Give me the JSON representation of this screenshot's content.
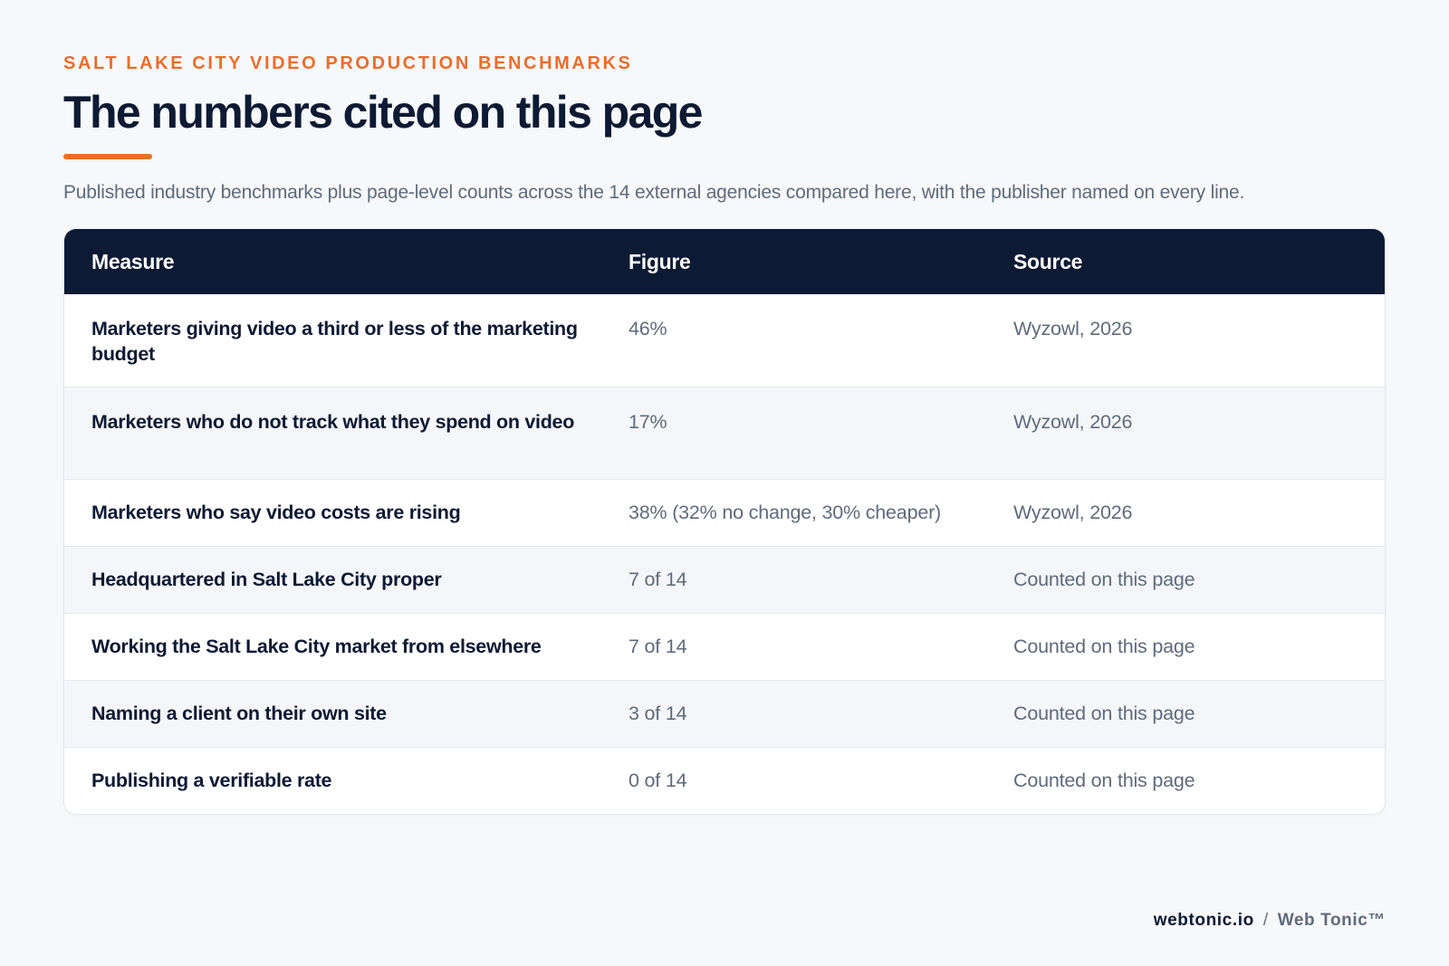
{
  "header": {
    "eyebrow": "SALT LAKE CITY VIDEO PRODUCTION BENCHMARKS",
    "title": "The numbers cited on this page",
    "subtitle": "Published industry benchmarks plus page-level counts across the 14 external agencies compared here, with the publisher named on every line."
  },
  "table": {
    "columns": {
      "measure": "Measure",
      "figure": "Figure",
      "source": "Source"
    },
    "rows": [
      {
        "measure": "Marketers giving video a third or less of the marketing budget",
        "figure": "46%",
        "source": "Wyzowl, 2026"
      },
      {
        "measure": "Marketers who do not track what they spend on video",
        "figure": "17%",
        "source": "Wyzowl, 2026"
      },
      {
        "measure": "Marketers who say video costs are rising",
        "figure": "38% (32% no change, 30% cheaper)",
        "source": "Wyzowl, 2026"
      },
      {
        "measure": "Headquartered in Salt Lake City proper",
        "figure": "7 of 14",
        "source": "Counted on this page"
      },
      {
        "measure": "Working the Salt Lake City market from elsewhere",
        "figure": "7 of 14",
        "source": "Counted on this page"
      },
      {
        "measure": "Naming a client on their own site",
        "figure": "3 of 14",
        "source": "Counted on this page"
      },
      {
        "measure": "Publishing a verifiable rate",
        "figure": "0 of 14",
        "source": "Counted on this page"
      }
    ]
  },
  "footer": {
    "domain": "webtonic.io",
    "separator": "/",
    "brand": "Web Tonic™"
  },
  "colors": {
    "accent": "#ea6d2e",
    "header_bg": "#0c1b33",
    "page_bg": "#f6f8fa",
    "text_dark": "#0d1a33",
    "text_muted": "#5f6b7b"
  }
}
